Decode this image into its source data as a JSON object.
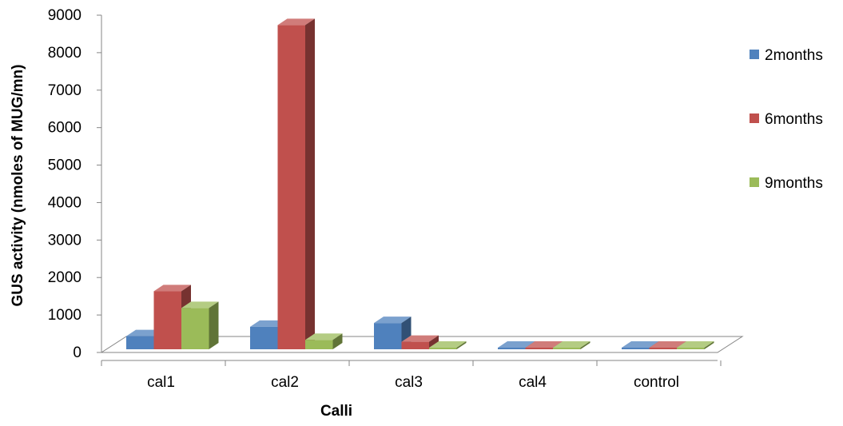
{
  "chart_data": {
    "type": "bar",
    "title": "",
    "xlabel": "Calli",
    "ylabel": "GUS activity (nmoles of MUG/mn)",
    "categories": [
      "cal1",
      "cal2",
      "cal3",
      "cal4",
      "control"
    ],
    "ylim": [
      0,
      9000
    ],
    "yticks": [
      "0",
      "1000",
      "2000",
      "3000",
      "4000",
      "5000",
      "6000",
      "7000",
      "8000",
      "9000"
    ],
    "series": [
      {
        "name": "2months",
        "values": [
          350,
          600,
          700,
          20,
          10
        ],
        "color": "#4F81BD"
      },
      {
        "name": "6months",
        "values": [
          1550,
          8650,
          200,
          30,
          10
        ],
        "color": "#C0504D"
      },
      {
        "name": "9months",
        "values": [
          1100,
          250,
          30,
          15,
          10
        ],
        "color": "#9BBB59"
      }
    ],
    "style": "3d-clustered-column",
    "grid": false,
    "legend_position": "right"
  }
}
